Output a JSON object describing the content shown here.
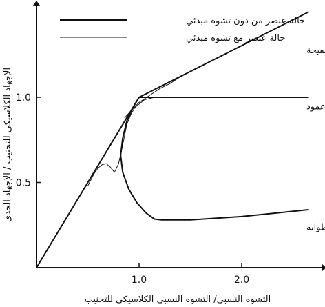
{
  "chart_data": {
    "type": "line",
    "title": "",
    "xlabel": "التشوه النسبي/ التشوه النسبي الكلاسيكي للتحنيب",
    "ylabel": "الإجهاد الكلاسيكي للتحنيب / الإجهاد الحدي",
    "xlim": [
      0,
      2.65
    ],
    "ylim": [
      0,
      1.55
    ],
    "x_ticks": [
      {
        "value": 1.0,
        "label": "1.0"
      },
      {
        "value": 2.0,
        "label": "2.0"
      }
    ],
    "y_ticks": [
      {
        "value": 0.5,
        "label": "0.5"
      },
      {
        "value": 1.0,
        "label": "1.0"
      }
    ],
    "grid": false,
    "legend": {
      "placement": "top",
      "entries": [
        {
          "name": "حالة عنصر من دون تشوه مبدئي",
          "style": "thick"
        },
        {
          "name": "حالة عنصر مع تشوه مبدئي",
          "style": "thin"
        }
      ]
    },
    "annotations": [
      {
        "text": "صفيحة",
        "x": 2.3,
        "y": 1.26
      },
      {
        "text": "عمود",
        "x": 2.3,
        "y": 0.93
      },
      {
        "text": "أسطوانة",
        "x": 2.3,
        "y": 0.22
      }
    ],
    "series": [
      {
        "style": "thick",
        "points": [
          [
            0,
            0
          ],
          [
            1.0,
            1.0
          ],
          [
            2.65,
            1.5
          ]
        ]
      },
      {
        "style": "thick",
        "points": [
          [
            1.0,
            1.0
          ],
          [
            2.65,
            1.0
          ]
        ]
      },
      {
        "style": "thick",
        "points": [
          [
            1.0,
            1.0
          ],
          [
            0.94,
            0.94
          ],
          [
            0.88,
            0.86
          ],
          [
            0.84,
            0.76
          ],
          [
            0.82,
            0.66
          ],
          [
            0.84,
            0.56
          ],
          [
            0.9,
            0.46
          ],
          [
            0.98,
            0.38
          ],
          [
            1.07,
            0.32
          ],
          [
            1.15,
            0.285
          ],
          [
            1.22,
            0.28
          ],
          [
            1.5,
            0.28
          ],
          [
            2.0,
            0.3
          ],
          [
            2.65,
            0.34
          ]
        ]
      },
      {
        "style": "thin",
        "points": [
          [
            0.5,
            0.48
          ],
          [
            0.56,
            0.55
          ],
          [
            0.6,
            0.585
          ],
          [
            0.64,
            0.605
          ],
          [
            0.68,
            0.61
          ],
          [
            0.72,
            0.59
          ],
          [
            0.76,
            0.56
          ],
          [
            0.8,
            0.61
          ],
          [
            0.84,
            0.72
          ],
          [
            0.88,
            0.84
          ],
          [
            0.92,
            0.9
          ],
          [
            0.96,
            0.94
          ],
          [
            1.05,
            0.985
          ],
          [
            1.15,
            1.0
          ],
          [
            2.65,
            1.0
          ]
        ]
      },
      {
        "style": "thin",
        "points": [
          [
            0.86,
            0.88
          ],
          [
            0.92,
            0.92
          ],
          [
            1.0,
            0.97
          ],
          [
            1.1,
            1.01
          ],
          [
            1.2,
            1.05
          ],
          [
            1.3,
            1.08
          ],
          [
            1.4,
            1.12
          ]
        ]
      }
    ],
    "colors": {
      "line": "#111111",
      "background": "#ffffff"
    }
  }
}
